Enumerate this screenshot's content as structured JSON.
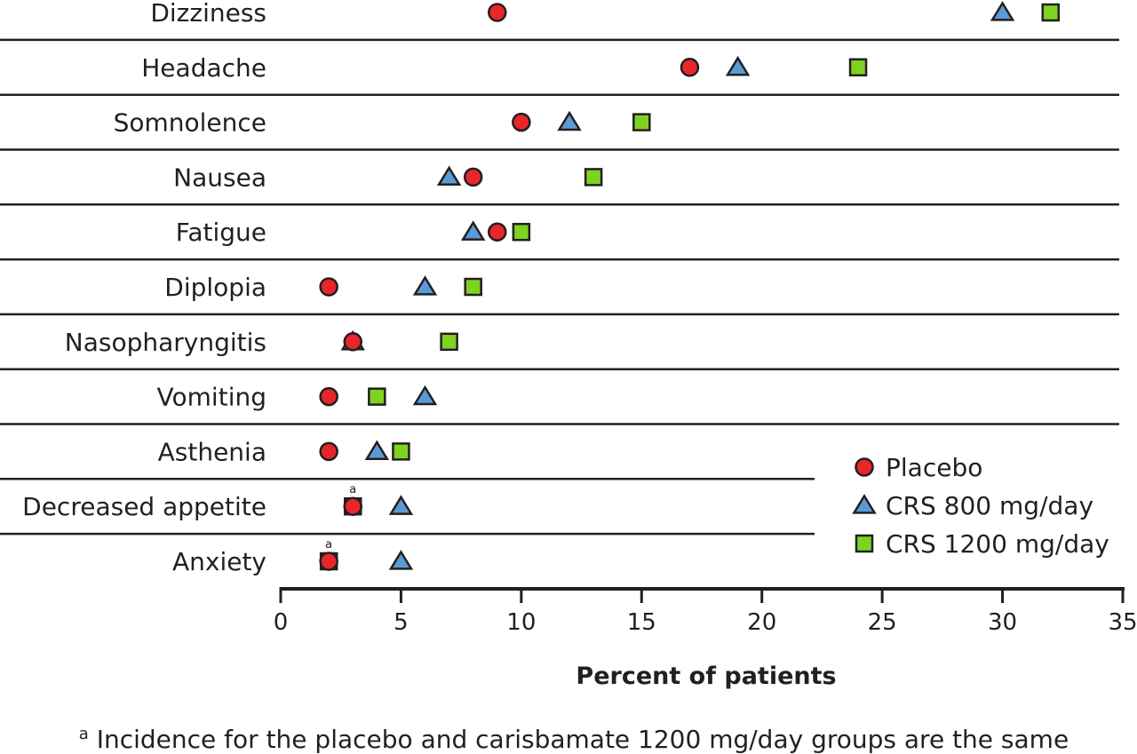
{
  "chart_data": {
    "type": "scatter",
    "xlabel": "Percent of patients",
    "xlim": [
      0,
      35
    ],
    "xticks": [
      0,
      5,
      10,
      15,
      20,
      25,
      30,
      35
    ],
    "grid": "horizontal row separators",
    "legend_position": "bottom-right",
    "categories": [
      "Dizziness",
      "Headache",
      "Somnolence",
      "Nausea",
      "Fatigue",
      "Diplopia",
      "Nasopharyngitis",
      "Vomiting",
      "Asthenia",
      "Decreased appetite",
      "Anxiety"
    ],
    "series": [
      {
        "name": "Placebo",
        "marker": "circle",
        "color": "#e8262b",
        "values": [
          9,
          17,
          10,
          8,
          9,
          2,
          3,
          2,
          2,
          3,
          2
        ]
      },
      {
        "name": "CRS 800 mg/day",
        "marker": "triangle",
        "color": "#5b9bd5",
        "values": [
          30,
          19,
          12,
          7,
          8,
          6,
          3,
          6,
          4,
          5,
          5
        ]
      },
      {
        "name": "CRS 1200 mg/day",
        "marker": "square",
        "color": "#7ed321",
        "values": [
          32,
          24,
          15,
          13,
          10,
          8,
          7,
          4,
          5,
          3,
          2
        ]
      }
    ],
    "mark_notes": [
      {
        "category": "Decreased appetite",
        "text": "a"
      },
      {
        "category": "Anxiety",
        "text": "a"
      }
    ],
    "footnote": {
      "marker": "a",
      "text": " Incidence for the placebo and carisbamate 1200 mg/day groups are the same"
    }
  }
}
